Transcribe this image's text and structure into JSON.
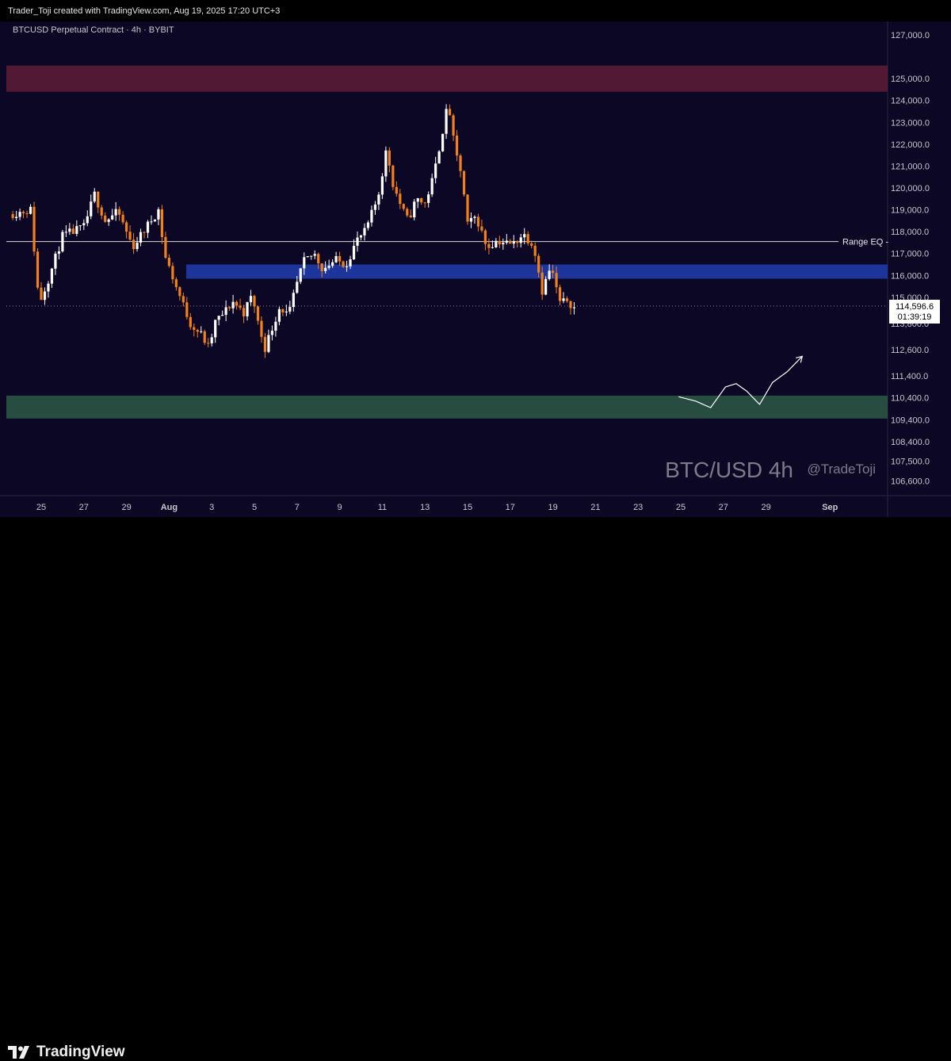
{
  "header": {
    "credit": "Trader_Toji created with TradingView.com, Aug 19, 2025 17:20 UTC+3"
  },
  "footer": {
    "brand": "TradingView"
  },
  "colors": {
    "background": "#0c0725",
    "up": "#ffffff",
    "down": "#f2801b",
    "supply_zone": "#5e1c36",
    "demand_zone": "#2b5945",
    "fvg_zone": "#1f3aa8",
    "range_eq": "#d9d9d9"
  },
  "chart_data": {
    "type": "candlestick",
    "title": "BTCUSD Perpetual Contract · 4h · BYBIT",
    "watermark": "BTC/USD 4h",
    "watermark_handle": "@TradeToji",
    "ylim": [
      106000,
      127400
    ],
    "y_ticks": [
      {
        "value": 127000,
        "label": "127,000.0"
      },
      {
        "value": 125000,
        "label": "125,000.0"
      },
      {
        "value": 124000,
        "label": "124,000.0"
      },
      {
        "value": 123000,
        "label": "123,000.0"
      },
      {
        "value": 122000,
        "label": "122,000.0"
      },
      {
        "value": 121000,
        "label": "121,000.0"
      },
      {
        "value": 120000,
        "label": "120,000.0"
      },
      {
        "value": 119000,
        "label": "119,000.0"
      },
      {
        "value": 118000,
        "label": "118,000.0"
      },
      {
        "value": 117000,
        "label": "117,000.0"
      },
      {
        "value": 116000,
        "label": "116,000.0"
      },
      {
        "value": 115000,
        "label": "115,000.0"
      },
      {
        "value": 113800,
        "label": "113,800.0"
      },
      {
        "value": 112600,
        "label": "112,600.0"
      },
      {
        "value": 111400,
        "label": "111,400.0"
      },
      {
        "value": 110400,
        "label": "110,400.0"
      },
      {
        "value": 109400,
        "label": "109,400.0"
      },
      {
        "value": 108400,
        "label": "108,400.0"
      },
      {
        "value": 107500,
        "label": "107,500.0"
      },
      {
        "value": 106600,
        "label": "106,600.0"
      }
    ],
    "x_ticks": [
      {
        "day": -7,
        "label": "25"
      },
      {
        "day": -5,
        "label": "27"
      },
      {
        "day": -3,
        "label": "29"
      },
      {
        "day": -1,
        "label": "Aug"
      },
      {
        "day": 1,
        "label": "3"
      },
      {
        "day": 3,
        "label": "5"
      },
      {
        "day": 5,
        "label": "7"
      },
      {
        "day": 7,
        "label": "9"
      },
      {
        "day": 9,
        "label": "11"
      },
      {
        "day": 11,
        "label": "13"
      },
      {
        "day": 13,
        "label": "15"
      },
      {
        "day": 15,
        "label": "17"
      },
      {
        "day": 17,
        "label": "19"
      },
      {
        "day": 19,
        "label": "21"
      },
      {
        "day": 21,
        "label": "23"
      },
      {
        "day": 23,
        "label": "25"
      },
      {
        "day": 25,
        "label": "27"
      },
      {
        "day": 27,
        "label": "29"
      },
      {
        "day": 30,
        "label": "Sep"
      }
    ],
    "last_price": {
      "label": "114,596.6",
      "value": 114596.6,
      "countdown": "01:39:19"
    },
    "zones": [
      {
        "name": "supply",
        "from": 124400,
        "to": 125600,
        "color": "#5e1c36"
      },
      {
        "name": "fvg",
        "from": 115850,
        "to": 116500,
        "color": "#1f3aa8",
        "start_day": -0.2
      },
      {
        "name": "demand",
        "from": 109450,
        "to": 110500,
        "color": "#2b5945"
      }
    ],
    "range_eq": {
      "label": "Range EQ -",
      "value": 117550
    },
    "projection_day_start": 22.9,
    "anchors": [
      [
        -8.5,
        118800
      ],
      [
        -7.5,
        119000
      ],
      [
        -7.1,
        114700
      ],
      [
        -6.6,
        116000
      ],
      [
        -6.0,
        117800
      ],
      [
        -5.0,
        118200
      ],
      [
        -4.5,
        119700
      ],
      [
        -4.0,
        118500
      ],
      [
        -3.4,
        118900
      ],
      [
        -2.7,
        117300
      ],
      [
        -2.0,
        118300
      ],
      [
        -1.5,
        119000
      ],
      [
        -1.2,
        116900
      ],
      [
        -0.6,
        115300
      ],
      [
        0.0,
        113800
      ],
      [
        0.5,
        113300
      ],
      [
        0.9,
        112600
      ],
      [
        1.1,
        113800
      ],
      [
        1.5,
        114200
      ],
      [
        2.0,
        114800
      ],
      [
        2.5,
        114300
      ],
      [
        2.9,
        115100
      ],
      [
        3.2,
        113700
      ],
      [
        3.5,
        112700
      ],
      [
        3.8,
        113500
      ],
      [
        4.2,
        114600
      ],
      [
        4.6,
        114100
      ],
      [
        4.9,
        115300
      ],
      [
        5.3,
        116600
      ],
      [
        5.8,
        117000
      ],
      [
        6.2,
        116300
      ],
      [
        6.8,
        116700
      ],
      [
        7.3,
        116500
      ],
      [
        7.8,
        117600
      ],
      [
        8.2,
        118000
      ],
      [
        8.8,
        119600
      ],
      [
        9.2,
        121800
      ],
      [
        9.5,
        120200
      ],
      [
        9.9,
        119100
      ],
      [
        10.2,
        118500
      ],
      [
        10.6,
        119500
      ],
      [
        11.0,
        119300
      ],
      [
        11.4,
        120500
      ],
      [
        11.8,
        122500
      ],
      [
        12.1,
        123900
      ],
      [
        12.4,
        121700
      ],
      [
        12.7,
        120700
      ],
      [
        13.0,
        118300
      ],
      [
        13.4,
        118700
      ],
      [
        13.9,
        117300
      ],
      [
        14.4,
        117600
      ],
      [
        15.1,
        117400
      ],
      [
        15.6,
        117900
      ],
      [
        16.1,
        117400
      ],
      [
        16.5,
        115300
      ],
      [
        16.9,
        116400
      ],
      [
        17.4,
        114500
      ],
      [
        17.6,
        115000
      ],
      [
        18.0,
        114500
      ]
    ]
  }
}
